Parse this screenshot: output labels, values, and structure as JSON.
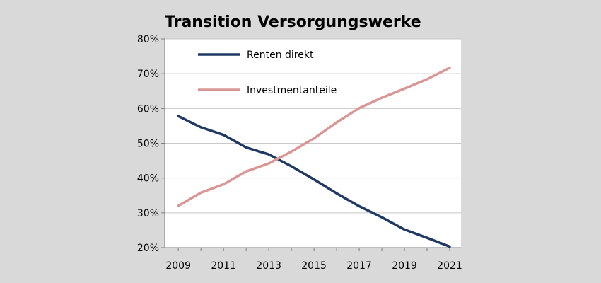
{
  "chart_data": {
    "type": "line",
    "title": "Transition Versorgungswerke",
    "xlabel": "",
    "ylabel": "",
    "x": [
      2009,
      2010,
      2011,
      2012,
      2013,
      2014,
      2015,
      2016,
      2017,
      2018,
      2019,
      2020,
      2021
    ],
    "x_tick_labels": [
      "2009",
      "2011",
      "2013",
      "2015",
      "2017",
      "2019",
      "2021"
    ],
    "x_tick_values": [
      2009,
      2011,
      2013,
      2015,
      2017,
      2019,
      2021
    ],
    "y_tick_labels": [
      "80%",
      "70%",
      "60%",
      "50%",
      "40%",
      "30%",
      "20%"
    ],
    "y_tick_values": [
      80,
      70,
      60,
      50,
      40,
      30,
      20
    ],
    "ylim": [
      20,
      80
    ],
    "grid": true,
    "legend_position": "top-left",
    "series": [
      {
        "name": "Renten direkt",
        "color": "#1f3864",
        "values": [
          57.8,
          54.6,
          52.4,
          48.8,
          46.8,
          43.4,
          39.6,
          35.6,
          31.9,
          28.7,
          25.2,
          22.8,
          20.3
        ]
      },
      {
        "name": "Investmentanteile",
        "color": "#d99694",
        "values": [
          32.0,
          35.8,
          38.2,
          41.9,
          44.2,
          47.6,
          51.4,
          56.0,
          60.1,
          63.1,
          65.7,
          68.4,
          71.7
        ]
      }
    ]
  }
}
